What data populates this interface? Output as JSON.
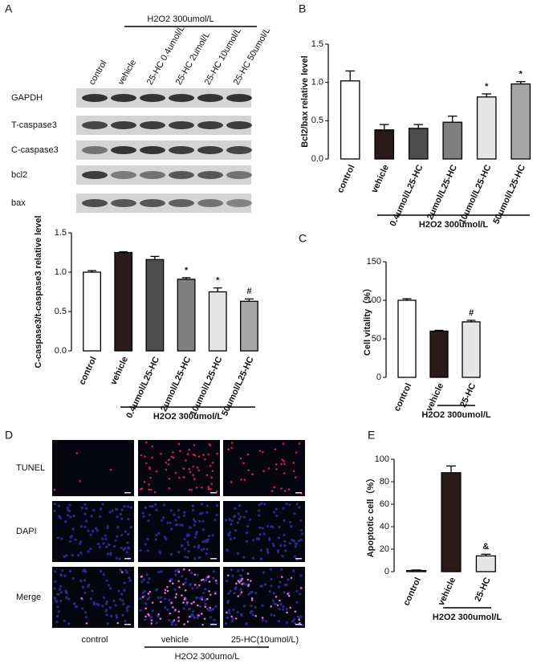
{
  "panel_labels": [
    "A",
    "B",
    "C",
    "D",
    "E"
  ],
  "blot": {
    "treatment": "H2O2 300umol/L",
    "columns": [
      "control",
      "vehicle",
      "25-HC 0.4umol/L",
      "25-HC 2umol/L",
      "25-HC 10umol/L",
      "25-HC 50umol/L"
    ],
    "rows": [
      "GAPDH",
      "T-caspase3",
      "C-caspase3",
      "bcl2",
      "bax"
    ]
  },
  "micrographs": {
    "rows": [
      "TUNEL",
      "DAPI",
      "Merge"
    ],
    "columns": [
      "control",
      "vehicle",
      "25-HC(10umol/L)"
    ],
    "treatment": "H2O2 300umo/L"
  },
  "chart_data": [
    {
      "type": "bar",
      "y_label": "C-caspase3/t-caspase3 relative level",
      "categories": [
        "control",
        "vehicle",
        "0.4umol/L25-HC",
        "2umol/L25-HC",
        "10umol/L25-HC",
        "50umol/L25-HC"
      ],
      "values": [
        1.0,
        1.25,
        1.16,
        0.91,
        0.75,
        0.63
      ],
      "errors": [
        0.02,
        0.01,
        0.04,
        0.02,
        0.05,
        0.03
      ],
      "annotations": [
        null,
        null,
        null,
        "*",
        "*",
        "#"
      ],
      "colors": [
        "#ffffff",
        "#2a1a1a",
        "#4d4d4d",
        "#7f7f7f",
        "#e6e6e6",
        "#a6a6a6"
      ],
      "group_label": "H2O2 300umol/L",
      "ylim": [
        0,
        1.5
      ],
      "yticks": [
        {
          "value": 0,
          "label": "0.0"
        },
        0.5,
        {
          "value": 1,
          "label": "1.0"
        },
        1.5
      ]
    },
    {
      "type": "bar",
      "y_label": "Bcl2/bax relative level",
      "categories": [
        "control",
        "vehicle",
        "0.4umol/L25-HC",
        "2umol/L25-HC",
        "10umol/L25-HC",
        "50umol/L25-HC"
      ],
      "values": [
        1.02,
        0.38,
        0.4,
        0.48,
        0.81,
        0.98
      ],
      "errors": [
        0.13,
        0.07,
        0.05,
        0.08,
        0.04,
        0.03
      ],
      "annotations": [
        null,
        null,
        null,
        null,
        "*",
        "*"
      ],
      "colors": [
        "#ffffff",
        "#2a1a1a",
        "#4d4d4d",
        "#7f7f7f",
        "#e6e6e6",
        "#a6a6a6"
      ],
      "group_label": "H2O2 300umol/L",
      "ylim": [
        0,
        1.5
      ],
      "yticks": [
        {
          "value": 0,
          "label": "0.0"
        },
        0.5,
        {
          "value": 1,
          "label": "1.0"
        },
        1.5
      ]
    },
    {
      "type": "bar",
      "y_label": "Cell vitality（%）",
      "categories": [
        "control",
        "vehicle",
        "25-HC"
      ],
      "values": [
        100,
        60,
        72
      ],
      "errors": [
        2,
        1,
        2
      ],
      "annotations": [
        null,
        null,
        "#"
      ],
      "colors": [
        "#ffffff",
        "#2a1a1a",
        "#e6e6e6"
      ],
      "group_label": "H2O2 300umol/L",
      "ylim": [
        0,
        150
      ],
      "yticks": [
        0,
        50,
        100,
        150
      ]
    },
    {
      "type": "bar",
      "y_label": "Apoptotic cell（%）",
      "categories": [
        "control",
        "vehicle",
        "25-HC"
      ],
      "values": [
        1,
        88,
        14
      ],
      "errors": [
        0.5,
        6,
        1.5
      ],
      "annotations": [
        null,
        null,
        "&"
      ],
      "colors": [
        "#ffffff",
        "#2a1a1a",
        "#e6e6e6"
      ],
      "group_label": "H2O2 300umol/L",
      "ylim": [
        0,
        100
      ],
      "yticks": [
        0,
        20,
        40,
        60,
        80,
        100
      ]
    }
  ]
}
